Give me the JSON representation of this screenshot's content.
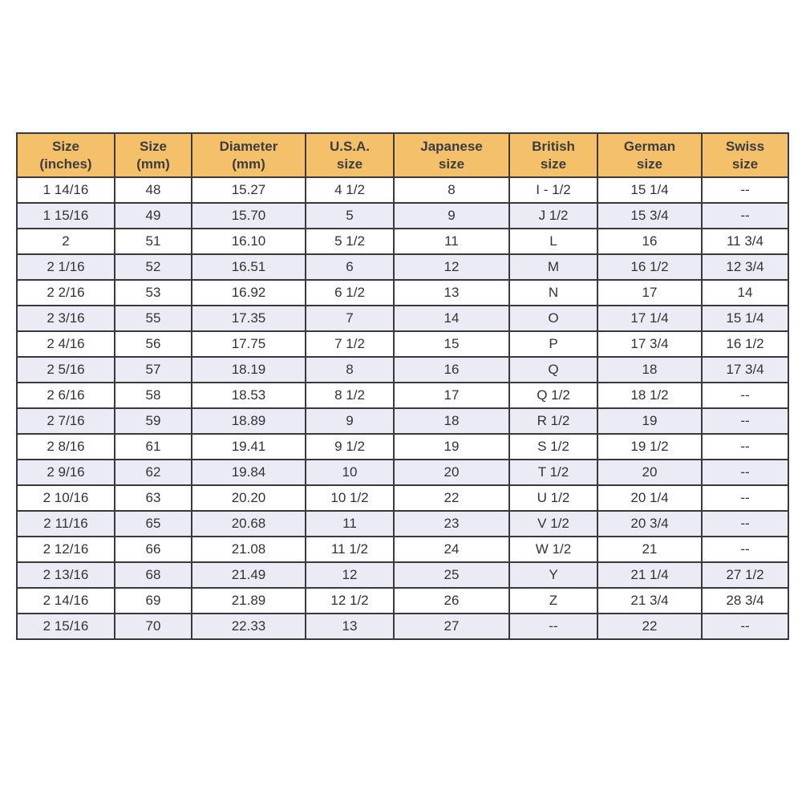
{
  "table": {
    "header": [
      [
        "Size",
        "(inches)"
      ],
      [
        "Size",
        "(mm)"
      ],
      [
        "Diameter",
        "(mm)"
      ],
      [
        "U.S.A.",
        "size"
      ],
      [
        "Japanese",
        "size"
      ],
      [
        "British",
        "size"
      ],
      [
        "German",
        "size"
      ],
      [
        "Swiss",
        "size"
      ]
    ],
    "rows": [
      [
        "1 14/16",
        "48",
        "15.27",
        "4 1/2",
        "8",
        "I - 1/2",
        "15 1/4",
        "--"
      ],
      [
        "1 15/16",
        "49",
        "15.70",
        "5",
        "9",
        "J 1/2",
        "15 3/4",
        "--"
      ],
      [
        "2",
        "51",
        "16.10",
        "5 1/2",
        "11",
        "L",
        "16",
        "11 3/4"
      ],
      [
        "2 1/16",
        "52",
        "16.51",
        "6",
        "12",
        "M",
        "16 1/2",
        "12 3/4"
      ],
      [
        "2 2/16",
        "53",
        "16.92",
        "6 1/2",
        "13",
        "N",
        "17",
        "14"
      ],
      [
        "2 3/16",
        "55",
        "17.35",
        "7",
        "14",
        "O",
        "17 1/4",
        "15 1/4"
      ],
      [
        "2 4/16",
        "56",
        "17.75",
        "7 1/2",
        "15",
        "P",
        "17 3/4",
        "16 1/2"
      ],
      [
        "2 5/16",
        "57",
        "18.19",
        "8",
        "16",
        "Q",
        "18",
        "17 3/4"
      ],
      [
        "2 6/16",
        "58",
        "18.53",
        "8 1/2",
        "17",
        "Q 1/2",
        "18 1/2",
        "--"
      ],
      [
        "2 7/16",
        "59",
        "18.89",
        "9",
        "18",
        "R 1/2",
        "19",
        "--"
      ],
      [
        "2 8/16",
        "61",
        "19.41",
        "9 1/2",
        "19",
        "S 1/2",
        "19 1/2",
        "--"
      ],
      [
        "2 9/16",
        "62",
        "19.84",
        "10",
        "20",
        "T 1/2",
        "20",
        "--"
      ],
      [
        "2 10/16",
        "63",
        "20.20",
        "10 1/2",
        "22",
        "U 1/2",
        "20 1/4",
        "--"
      ],
      [
        "2 11/16",
        "65",
        "20.68",
        "11",
        "23",
        "V 1/2",
        "20 3/4",
        "--"
      ],
      [
        "2 12/16",
        "66",
        "21.08",
        "11 1/2",
        "24",
        "W 1/2",
        "21",
        "--"
      ],
      [
        "2 13/16",
        "68",
        "21.49",
        "12",
        "25",
        "Y",
        "21 1/4",
        "27 1/2"
      ],
      [
        "2 14/16",
        "69",
        "21.89",
        "12 1/2",
        "26",
        "Z",
        "21 3/4",
        "28 3/4"
      ],
      [
        "2 15/16",
        "70",
        "22.33",
        "13",
        "27",
        "--",
        "22",
        "--"
      ]
    ]
  }
}
